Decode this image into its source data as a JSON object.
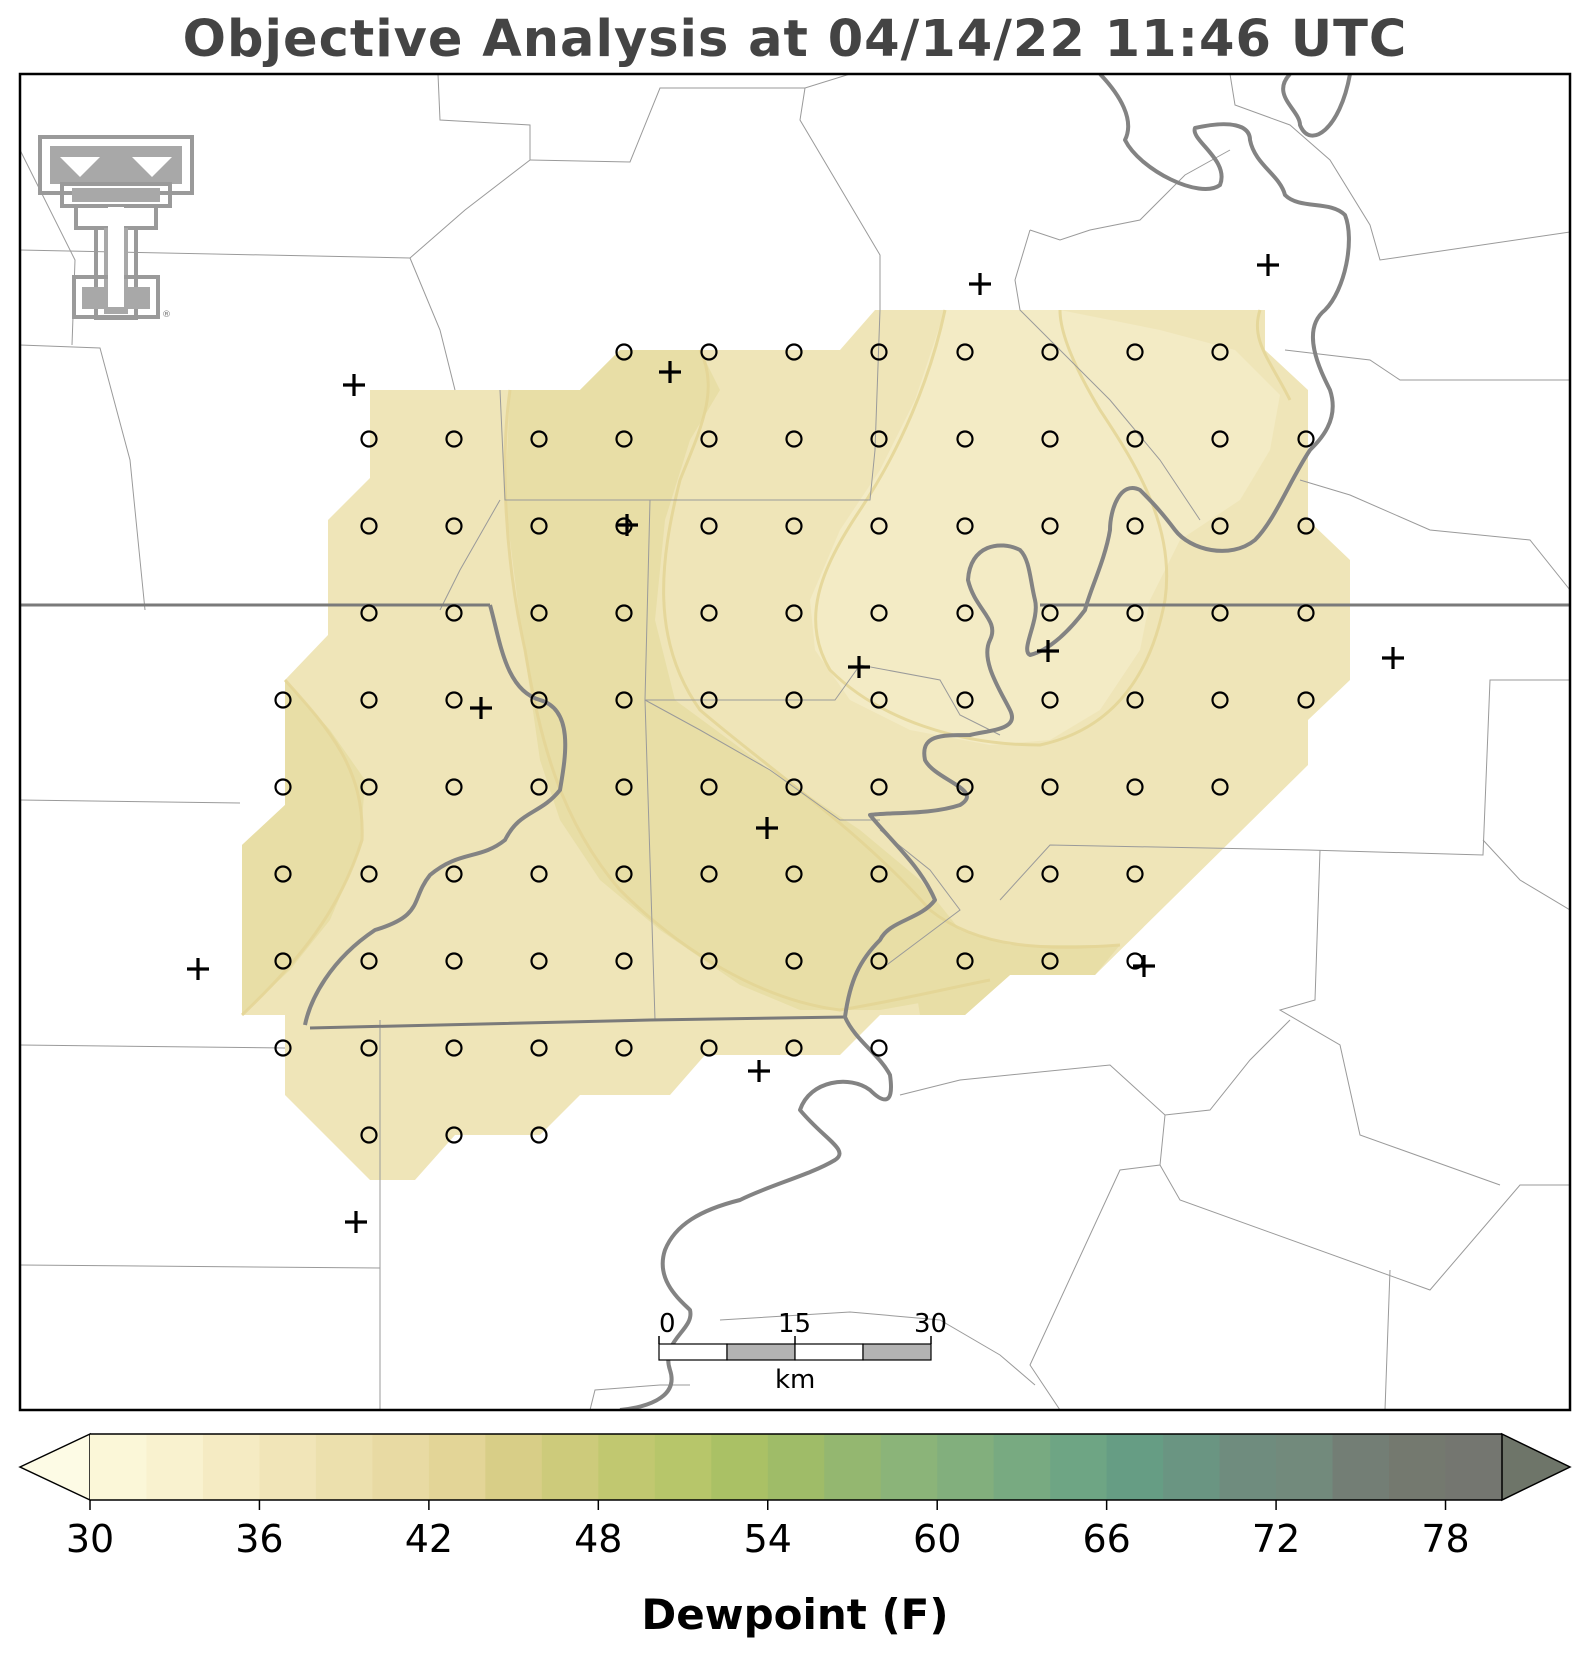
{
  "title": "Objective Analysis at 04/14/22 11:46 UTC",
  "colorbar": {
    "label": "Dewpoint (F)",
    "min": 30,
    "max": 80,
    "step": 2,
    "tick_labels": [
      "30",
      "36",
      "42",
      "48",
      "54",
      "60",
      "66",
      "72",
      "78"
    ],
    "colors": [
      "#fbf7d8",
      "#f9f2cf",
      "#f5ebc3",
      "#f1e5b8",
      "#ece0ad",
      "#e8daa3",
      "#e3d597",
      "#d8ce87",
      "#cdcb7b",
      "#c1c870",
      "#b7c66a",
      "#aac165",
      "#9fbc68",
      "#94b770",
      "#8bb479",
      "#82af7d",
      "#78aa81",
      "#6ea584",
      "#669d84",
      "#6a9582",
      "#6f8c7e",
      "#728a7c",
      "#737e75",
      "#74796f",
      "#747670"
    ],
    "under_color": "#fdfbe5",
    "over_color": "#6e7569"
  },
  "scale_bar": {
    "tick_labels": [
      "0",
      "15",
      "30"
    ],
    "unit": "km"
  },
  "legend_note": "",
  "icons": {
    "logo": "texas-tech-double-t-logo",
    "station": "plus-marker",
    "grid_point": "circle-marker"
  },
  "analysis": {
    "fill_colors": {
      "dark": "#e8dea6",
      "mid": "#efe5b8",
      "light": "#f3ebc5"
    }
  }
}
